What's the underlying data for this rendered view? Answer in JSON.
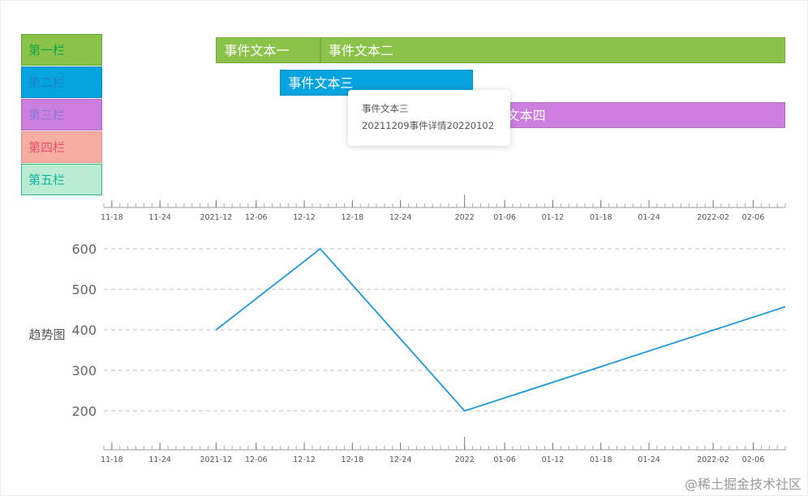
{
  "lanes": [
    {
      "label": "第一栏",
      "bg": "#8bc34a",
      "fg": "#13a543",
      "border": "#5aa638"
    },
    {
      "label": "第二栏",
      "bg": "#05a4de",
      "fg": "#1b7fd2",
      "border": "#0788c2"
    },
    {
      "label": "第三栏",
      "bg": "#cd7fe0",
      "fg": "#8d7ad6",
      "border": "#b064c8"
    },
    {
      "label": "第四栏",
      "bg": "#f5aea1",
      "fg": "#e8506b",
      "border": "#e58f82"
    },
    {
      "label": "第五栏",
      "bg": "#b9ecd2",
      "fg": "#11b8a0",
      "border": "#35b888"
    }
  ],
  "events": [
    {
      "lane": 0,
      "label": "事件文本一",
      "start": "2021-12-01",
      "end": "2021-12-14",
      "color": "#8bc34a"
    },
    {
      "lane": 0,
      "label": "事件文本二",
      "start": "2021-12-14",
      "end": "2022-02-10",
      "color": "#8bc34a"
    },
    {
      "lane": 1,
      "label": "事件文本三",
      "start": "2021-12-09",
      "end": "2022-01-02",
      "color": "#05a4de"
    },
    {
      "lane": 2,
      "label": "事件文本四",
      "start": "2022-01-02",
      "end": "2022-02-10",
      "color": "#cd7fe0"
    }
  ],
  "tooltip": {
    "title": "事件文本三",
    "detail": "20211209事件详情20220102"
  },
  "axis": {
    "ticks": [
      {
        "date": "2021-11-18",
        "label": "11-18"
      },
      {
        "date": "2021-11-24",
        "label": "11-24"
      },
      {
        "date": "2021-12-01",
        "label": "2021-12"
      },
      {
        "date": "2021-12-06",
        "label": "12-06"
      },
      {
        "date": "2021-12-12",
        "label": "12-12"
      },
      {
        "date": "2021-12-18",
        "label": "12-18"
      },
      {
        "date": "2021-12-24",
        "label": "12-24"
      },
      {
        "date": "2022-01-01",
        "label": "2022",
        "major": true
      },
      {
        "date": "2022-01-06",
        "label": "01-06"
      },
      {
        "date": "2022-01-12",
        "label": "01-12"
      },
      {
        "date": "2022-01-18",
        "label": "01-18"
      },
      {
        "date": "2022-01-24",
        "label": "01-24"
      },
      {
        "date": "2022-02-01",
        "label": "2022-02"
      },
      {
        "date": "2022-02-06",
        "label": "02-06"
      }
    ],
    "start": "2021-11-17",
    "end": "2022-02-10"
  },
  "chart_data": {
    "type": "line",
    "ylabel": "趋势图",
    "yticks": [
      200,
      300,
      400,
      500,
      600
    ],
    "ylim": [
      100,
      620
    ],
    "grid": true,
    "series": [
      {
        "color": "#1f97d9",
        "points": [
          {
            "x": "2021-12-01",
            "y": 400
          },
          {
            "x": "2021-12-14",
            "y": 600
          },
          {
            "x": "2022-01-01",
            "y": 200
          },
          {
            "x": "2022-02-10",
            "y": 457
          }
        ]
      }
    ]
  },
  "watermark": "@稀土掘金技术社区"
}
